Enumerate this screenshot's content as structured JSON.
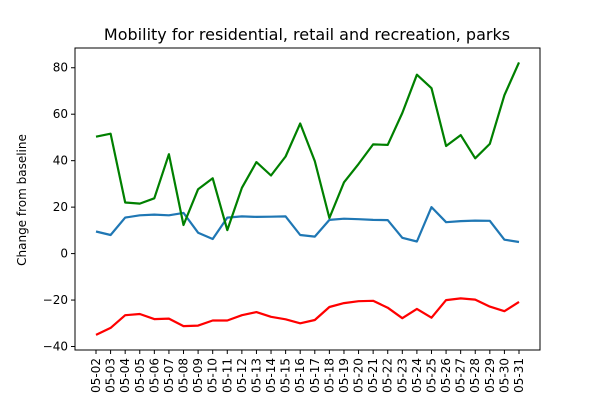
{
  "chart_data": {
    "type": "line",
    "title": "Mobility for residential, retail and recreation, parks",
    "xlabel": "",
    "ylabel": "Change from baseline",
    "ylim": [
      -41.5,
      88.5
    ],
    "yticks": [
      -40,
      -20,
      0,
      20,
      40,
      60,
      80
    ],
    "grid": false,
    "categories": [
      "05-02",
      "05-03",
      "05-04",
      "05-05",
      "05-06",
      "05-07",
      "05-08",
      "05-09",
      "05-10",
      "05-11",
      "05-12",
      "05-13",
      "05-14",
      "05-15",
      "05-16",
      "05-17",
      "05-18",
      "05-19",
      "05-20",
      "05-21",
      "05-22",
      "05-23",
      "05-24",
      "05-25",
      "05-26",
      "05-27",
      "05-28",
      "05-29",
      "05-30",
      "05-31"
    ],
    "series": [
      {
        "color": "#1f77b4",
        "values": [
          9.5,
          8,
          15.5,
          16.5,
          16.8,
          16.5,
          17.5,
          9,
          6.3,
          15.5,
          16,
          15.8,
          15.9,
          16,
          8,
          7.3,
          14.5,
          15,
          14.8,
          14.5,
          14.4,
          6.8,
          5.2,
          20,
          13.5,
          14,
          14.2,
          14.1,
          6,
          5
        ]
      },
      {
        "color": "#008000",
        "values": [
          50.3,
          51.6,
          22,
          21.5,
          23.8,
          42.8,
          12.3,
          27.7,
          32.4,
          10.1,
          28.3,
          39.4,
          33.6,
          41.8,
          56,
          39.8,
          15.3,
          30.7,
          38.6,
          47,
          46.8,
          60.5,
          77,
          71.2,
          46.3,
          51,
          41,
          47.2,
          68.2,
          82.3
        ]
      },
      {
        "color": "#ff0000",
        "values": [
          -35,
          -32,
          -26.5,
          -26,
          -28.2,
          -28,
          -31.2,
          -31,
          -28.8,
          -28.8,
          -26.5,
          -25.2,
          -27.2,
          -28.3,
          -30,
          -28.6,
          -23,
          -21.3,
          -20.5,
          -20.3,
          -23.3,
          -27.8,
          -23.8,
          -27.6,
          -20,
          -19.3,
          -19.8,
          -22.8,
          -24.8,
          -20.8
        ]
      }
    ]
  }
}
